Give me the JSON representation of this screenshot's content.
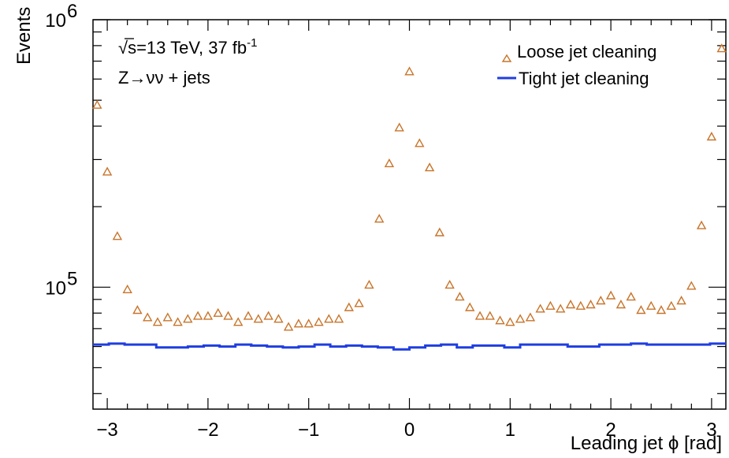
{
  "chart_data": {
    "type": "scatter",
    "xlabel": "Leading jet ϕ [rad]",
    "ylabel": "Events",
    "xlim": [
      -3.1416,
      3.1416
    ],
    "ylim": [
      35000,
      1000000
    ],
    "yscale": "log",
    "x_ticks": [
      -3,
      -2,
      -1,
      0,
      1,
      2,
      3
    ],
    "x_tick_labels": [
      "−3",
      "−2",
      "−1",
      "0",
      "1",
      "2",
      "3"
    ],
    "y_tick_labels": [
      {
        "base": "10",
        "exp": "5",
        "value": 100000
      },
      {
        "base": "10",
        "exp": "6",
        "value": 1000000
      }
    ],
    "annotations": [
      {
        "parts": [
          "√",
          "s",
          "=13 TeV, 37 fb",
          "-1"
        ]
      },
      {
        "text": "Z→νν + jets"
      }
    ],
    "legend_position": "top-right",
    "x_centers": [
      -3.0631,
      -2.906,
      -2.7489,
      -2.5918,
      -2.4347,
      -2.2777,
      -2.1206,
      -1.9635,
      -1.8064,
      -1.6493,
      -1.4923,
      -1.3352,
      -1.1781,
      -1.021,
      -0.8639,
      -0.7069,
      -0.5498,
      -0.3927,
      -0.2356,
      -0.0785,
      0.0785,
      0.2356,
      0.3927,
      0.5498,
      0.7069,
      0.8639,
      1.021,
      1.1781,
      1.3352,
      1.4923,
      1.6493,
      1.8064,
      1.9635,
      2.1206,
      2.2777,
      2.4347,
      2.5918,
      2.7489,
      2.906,
      3.0631
    ],
    "series": [
      {
        "name": "Loose jet cleaning",
        "marker": "open-triangle",
        "color": "#c8742a",
        "x": [
          -3.1,
          -3.0,
          -2.9,
          -2.8,
          -2.7,
          -2.6,
          -2.5,
          -2.4,
          -2.3,
          -2.2,
          -2.1,
          -2.0,
          -1.9,
          -1.8,
          -1.7,
          -1.6,
          -1.5,
          -1.4,
          -1.3,
          -1.2,
          -1.1,
          -1.0,
          -0.9,
          -0.8,
          -0.7,
          -0.6,
          -0.5,
          -0.4,
          -0.3,
          -0.2,
          -0.1,
          0.0,
          0.1,
          0.2,
          0.3,
          0.4,
          0.5,
          0.6,
          0.7,
          0.8,
          0.9,
          1.0,
          1.1,
          1.2,
          1.3,
          1.4,
          1.5,
          1.6,
          1.7,
          1.8,
          1.9,
          2.0,
          2.1,
          2.2,
          2.3,
          2.4,
          2.5,
          2.6,
          2.7,
          2.8,
          2.9,
          3.0,
          3.1
        ],
        "values": [
          480000,
          270000,
          155000,
          98000,
          82000,
          77000,
          74000,
          77000,
          74000,
          76000,
          78000,
          78000,
          80000,
          78000,
          74000,
          78000,
          76000,
          78000,
          76000,
          71000,
          73000,
          73000,
          74000,
          76000,
          76000,
          84000,
          87000,
          102000,
          180000,
          290000,
          395000,
          640000,
          345000,
          280000,
          160000,
          102000,
          92000,
          84000,
          78000,
          78000,
          75000,
          74000,
          76000,
          77000,
          83000,
          85000,
          83000,
          86000,
          85000,
          86000,
          89000,
          93000,
          86000,
          92000,
          82000,
          85000,
          82000,
          85000,
          89000,
          101000,
          170000,
          365000,
          780000
        ]
      },
      {
        "name": "Tight jet cleaning",
        "type": "step",
        "color": "#1f3ee0",
        "values": [
          61000,
          61500,
          61000,
          61000,
          59500,
          59500,
          60000,
          60500,
          60000,
          61000,
          60500,
          60000,
          59500,
          60000,
          61000,
          60000,
          60500,
          60000,
          59500,
          58500,
          59500,
          60500,
          61000,
          59500,
          60500,
          60500,
          59500,
          61000,
          61000,
          61000,
          60000,
          60000,
          61000,
          61000,
          61500,
          61000,
          61000,
          61000,
          61000,
          61500
        ]
      }
    ]
  }
}
